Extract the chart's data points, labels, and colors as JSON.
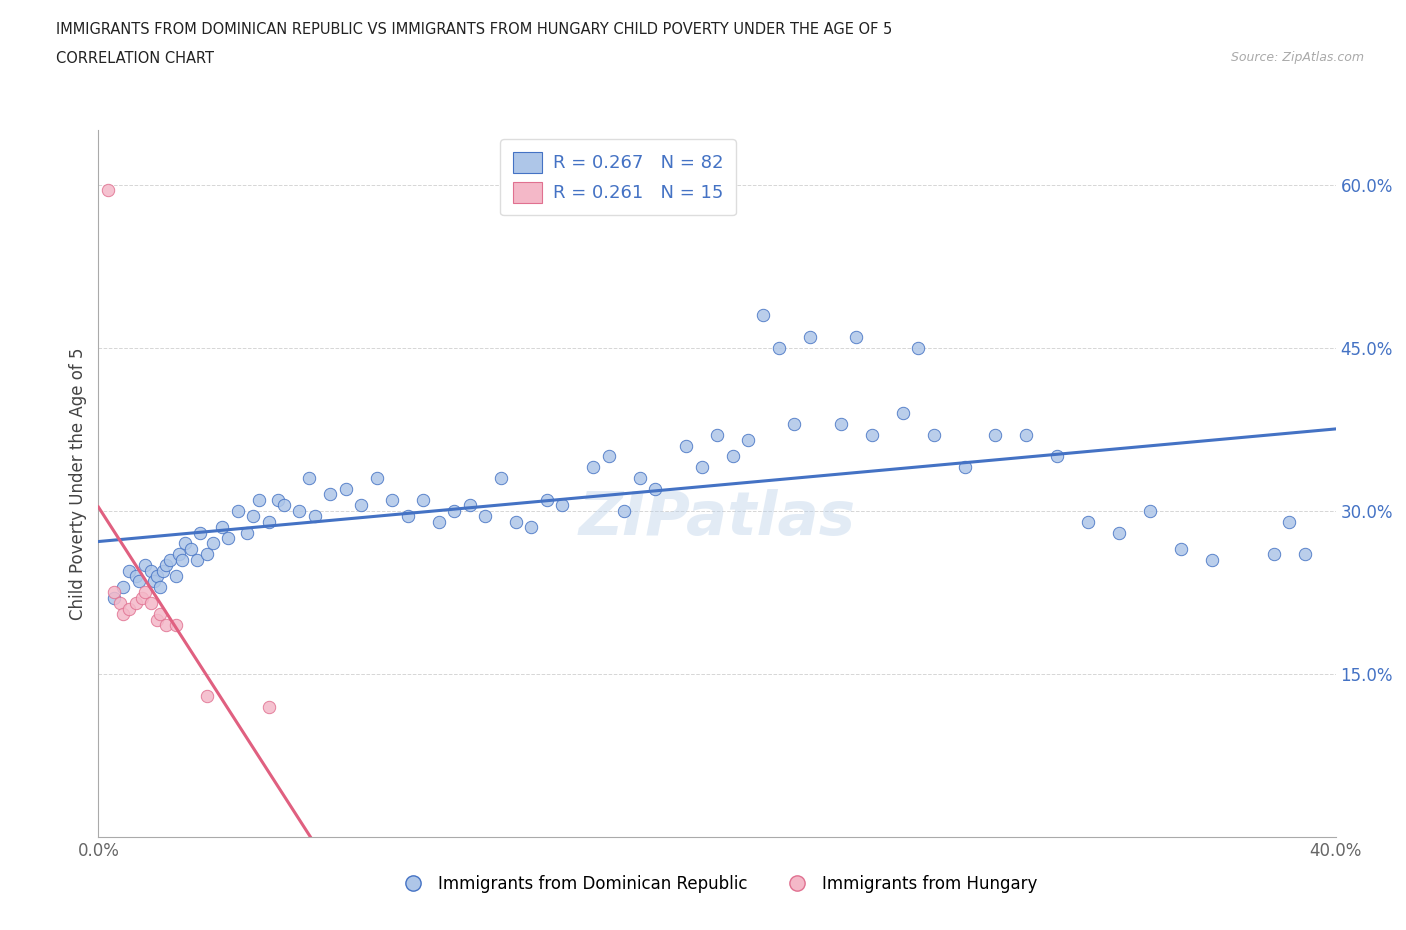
{
  "title_line1": "IMMIGRANTS FROM DOMINICAN REPUBLIC VS IMMIGRANTS FROM HUNGARY CHILD POVERTY UNDER THE AGE OF 5",
  "title_line2": "CORRELATION CHART",
  "source_text": "Source: ZipAtlas.com",
  "ylabel": "Child Poverty Under the Age of 5",
  "watermark": "ZIPatlas",
  "legend_label1": "Immigrants from Dominican Republic",
  "legend_label2": "Immigrants from Hungary",
  "R1": 0.267,
  "N1": 82,
  "R2": 0.261,
  "N2": 15,
  "xlim": [
    0.0,
    0.4
  ],
  "ylim": [
    0.0,
    0.65
  ],
  "color1": "#aec6e8",
  "color2": "#f4b8c8",
  "edge_color1": "#4472c4",
  "edge_color2": "#e07090",
  "line_color1": "#4472c4",
  "line_color2": "#e06080",
  "blue_x": [
    0.005,
    0.008,
    0.01,
    0.012,
    0.013,
    0.015,
    0.017,
    0.018,
    0.019,
    0.02,
    0.021,
    0.022,
    0.023,
    0.025,
    0.026,
    0.027,
    0.028,
    0.03,
    0.032,
    0.033,
    0.035,
    0.037,
    0.04,
    0.042,
    0.045,
    0.048,
    0.05,
    0.052,
    0.055,
    0.058,
    0.06,
    0.065,
    0.068,
    0.07,
    0.075,
    0.08,
    0.085,
    0.09,
    0.095,
    0.1,
    0.105,
    0.11,
    0.115,
    0.12,
    0.125,
    0.13,
    0.135,
    0.14,
    0.145,
    0.15,
    0.16,
    0.165,
    0.17,
    0.175,
    0.18,
    0.19,
    0.195,
    0.2,
    0.205,
    0.21,
    0.215,
    0.22,
    0.225,
    0.23,
    0.24,
    0.245,
    0.25,
    0.26,
    0.265,
    0.27,
    0.28,
    0.29,
    0.3,
    0.31,
    0.32,
    0.33,
    0.34,
    0.35,
    0.36,
    0.38,
    0.385,
    0.39
  ],
  "blue_y": [
    0.22,
    0.23,
    0.245,
    0.24,
    0.235,
    0.25,
    0.245,
    0.235,
    0.24,
    0.23,
    0.245,
    0.25,
    0.255,
    0.24,
    0.26,
    0.255,
    0.27,
    0.265,
    0.255,
    0.28,
    0.26,
    0.27,
    0.285,
    0.275,
    0.3,
    0.28,
    0.295,
    0.31,
    0.29,
    0.31,
    0.305,
    0.3,
    0.33,
    0.295,
    0.315,
    0.32,
    0.305,
    0.33,
    0.31,
    0.295,
    0.31,
    0.29,
    0.3,
    0.305,
    0.295,
    0.33,
    0.29,
    0.285,
    0.31,
    0.305,
    0.34,
    0.35,
    0.3,
    0.33,
    0.32,
    0.36,
    0.34,
    0.37,
    0.35,
    0.365,
    0.48,
    0.45,
    0.38,
    0.46,
    0.38,
    0.46,
    0.37,
    0.39,
    0.45,
    0.37,
    0.34,
    0.37,
    0.37,
    0.35,
    0.29,
    0.28,
    0.3,
    0.265,
    0.255,
    0.26,
    0.29,
    0.26
  ],
  "pink_x": [
    0.003,
    0.005,
    0.007,
    0.008,
    0.01,
    0.012,
    0.014,
    0.015,
    0.017,
    0.019,
    0.02,
    0.022,
    0.025,
    0.035,
    0.055
  ],
  "pink_y": [
    0.595,
    0.225,
    0.215,
    0.205,
    0.21,
    0.215,
    0.22,
    0.225,
    0.215,
    0.2,
    0.205,
    0.195,
    0.195,
    0.13,
    0.12
  ]
}
